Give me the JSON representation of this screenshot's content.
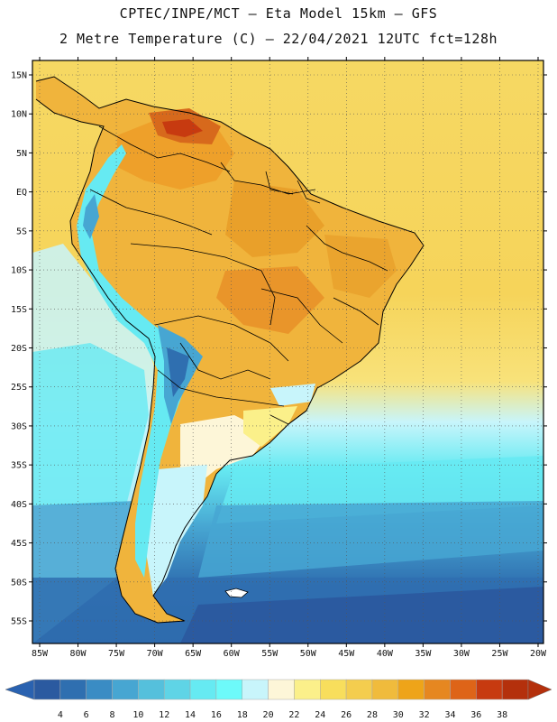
{
  "title_line1": "CPTEC/INPE/MCT –  Eta Model 15km – GFS",
  "title_line2": "2 Metre Temperature (C) – 22/04/2021 12UTC fct=128h",
  "lat_labels": [
    "15N",
    "10N",
    "5N",
    "EQ",
    "5S",
    "10S",
    "15S",
    "20S",
    "25S",
    "30S",
    "35S",
    "40S",
    "45S",
    "50S",
    "55S"
  ],
  "lon_labels": [
    "85W",
    "80W",
    "75W",
    "70W",
    "65W",
    "60W",
    "55W",
    "50W",
    "45W",
    "40W",
    "35W",
    "30W",
    "25W",
    "20W"
  ],
  "colorbar": {
    "ticks": [
      "4",
      "6",
      "8",
      "10",
      "12",
      "14",
      "16",
      "18",
      "20",
      "22",
      "24",
      "26",
      "28",
      "30",
      "32",
      "34",
      "36",
      "38"
    ],
    "colors": [
      "#2b5aa0",
      "#2f6fb0",
      "#3a8cc4",
      "#47a6d2",
      "#55c0dc",
      "#5fd4e6",
      "#66eaf2",
      "#6dfafa",
      "#c8f5fb",
      "#fdf6d8",
      "#fbf08a",
      "#f8de5c",
      "#f4cd4e",
      "#f0bb3c",
      "#eea419",
      "#e68720",
      "#de6418",
      "#c73a10",
      "#b4300c"
    ],
    "min_color": "#2a62b0",
    "max_color": "#b4300c"
  },
  "colors": {
    "ocean_warm": "#f6d75a",
    "land_warm": "#eea82e",
    "land_hot": "#d7691c",
    "cool_band": "#c8f5fb",
    "cyan": "#66eaf2",
    "blue_mid": "#47a6d2",
    "blue_deep": "#2b5aa0",
    "border": "#000000",
    "grid": "#555555"
  }
}
